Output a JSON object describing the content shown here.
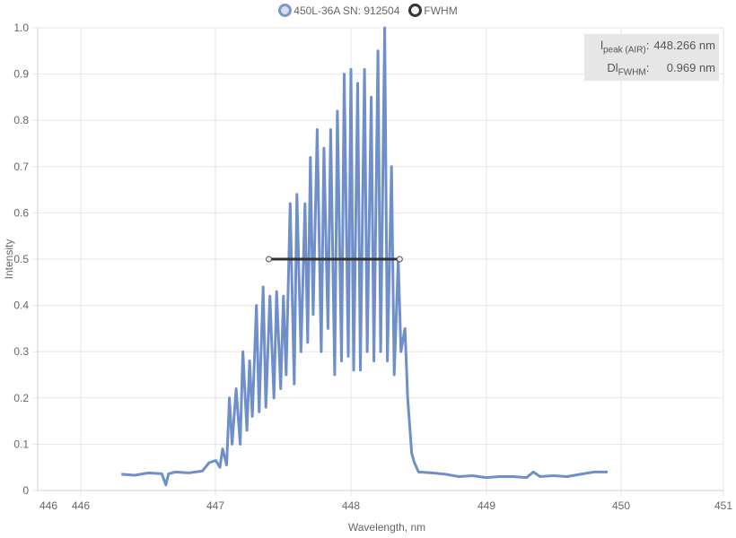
{
  "legend": [
    {
      "label": "450L-36A SN: 912504",
      "border": "#7b95cf",
      "fill": "#d9dde6"
    },
    {
      "label": "FWHM",
      "border": "#333333",
      "fill": "#f2f2f2"
    }
  ],
  "info": {
    "peak_label_main": "l",
    "peak_label_sub": "peak (AIR)",
    "peak_label_suffix": ":",
    "peak_value": "448.266 nm",
    "fwhm_label_main": "Dl",
    "fwhm_label_sub": "FWHM",
    "fwhm_label_suffix": ":",
    "fwhm_value": "0.969 nm"
  },
  "chart_data": {
    "type": "line",
    "xlabel": "Wavelength, nm",
    "ylabel": "Intensity",
    "xlim": [
      446,
      451
    ],
    "ylim": [
      0,
      1
    ],
    "x_ticks": [
      "446",
      "446",
      "447",
      "448",
      "449",
      "450",
      "451"
    ],
    "y_ticks": [
      "0",
      "0.1",
      "0.2",
      "0.3",
      "0.4",
      "0.5",
      "0.6",
      "0.7",
      "0.8",
      "0.9",
      "1.0"
    ],
    "grid": true,
    "legend_position": "top-center",
    "series": [
      {
        "name": "450L-36A SN: 912504",
        "color": "#6f8fcb",
        "x": [
          446.3,
          446.4,
          446.5,
          446.6,
          446.63,
          446.65,
          446.7,
          446.8,
          446.9,
          446.95,
          447.0,
          447.03,
          447.05,
          447.08,
          447.1,
          447.12,
          447.15,
          447.18,
          447.2,
          447.23,
          447.25,
          447.27,
          447.3,
          447.32,
          447.35,
          447.37,
          447.4,
          447.43,
          447.45,
          447.48,
          447.5,
          447.52,
          447.55,
          447.58,
          447.6,
          447.63,
          447.66,
          447.68,
          447.7,
          447.72,
          447.75,
          447.78,
          447.8,
          447.83,
          447.85,
          447.88,
          447.9,
          447.93,
          447.95,
          447.98,
          448.0,
          448.02,
          448.05,
          448.07,
          448.1,
          448.12,
          448.15,
          448.17,
          448.2,
          448.22,
          448.25,
          448.27,
          448.3,
          448.32,
          448.35,
          448.37,
          448.4,
          448.42,
          448.45,
          448.47,
          448.5,
          448.6,
          448.7,
          448.8,
          448.9,
          449.0,
          449.1,
          449.2,
          449.3,
          449.35,
          449.4,
          449.5,
          449.6,
          449.7,
          449.8,
          449.9
        ],
        "y": [
          0.035,
          0.033,
          0.038,
          0.036,
          0.012,
          0.036,
          0.04,
          0.038,
          0.042,
          0.06,
          0.065,
          0.05,
          0.09,
          0.055,
          0.2,
          0.1,
          0.22,
          0.1,
          0.3,
          0.13,
          0.28,
          0.16,
          0.4,
          0.17,
          0.44,
          0.18,
          0.42,
          0.2,
          0.43,
          0.22,
          0.42,
          0.25,
          0.62,
          0.23,
          0.64,
          0.3,
          0.62,
          0.32,
          0.72,
          0.38,
          0.78,
          0.3,
          0.74,
          0.35,
          0.78,
          0.25,
          0.82,
          0.28,
          0.9,
          0.29,
          0.91,
          0.26,
          0.88,
          0.26,
          0.91,
          0.3,
          0.85,
          0.28,
          0.95,
          0.3,
          1.0,
          0.28,
          0.7,
          0.25,
          0.5,
          0.3,
          0.35,
          0.2,
          0.08,
          0.06,
          0.04,
          0.038,
          0.035,
          0.03,
          0.032,
          0.028,
          0.03,
          0.03,
          0.028,
          0.04,
          0.03,
          0.032,
          0.03,
          0.035,
          0.04,
          0.04
        ]
      },
      {
        "name": "FWHM",
        "color": "#333333",
        "x": [
          447.392,
          448.361
        ],
        "y": [
          0.5,
          0.5
        ]
      }
    ]
  }
}
